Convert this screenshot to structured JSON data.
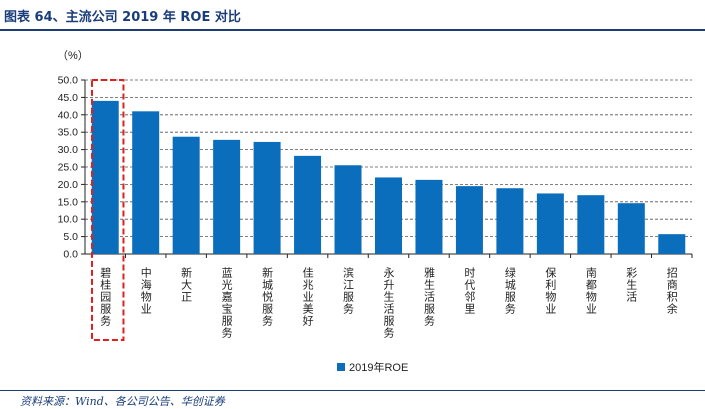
{
  "header": {
    "title": "图表 64、主流公司 2019 年 ROE 对比"
  },
  "footer": {
    "source": "资料来源：Wind、各公司公告、华创证券"
  },
  "colors": {
    "bar": "#0a6ebd",
    "highlight": "#e02020",
    "title": "#1a3d7a"
  },
  "chart_data": {
    "type": "bar",
    "title": "",
    "ylabel": "（%）",
    "xlabel": "",
    "ylim": [
      0,
      50
    ],
    "yticks": [
      "0.0",
      "5.0",
      "10.0",
      "15.0",
      "20.0",
      "25.0",
      "30.0",
      "35.0",
      "40.0",
      "45.0",
      "50.0"
    ],
    "grid": true,
    "categories": [
      "碧桂园服务",
      "中海物业",
      "新大正",
      "蓝光嘉宝服务",
      "新城悦服务",
      "佳兆业美好",
      "滨江服务",
      "永升生活服务",
      "雅生活服务",
      "时代邻里",
      "绿城服务",
      "保利物业",
      "南都物业",
      "彩生活",
      "招商积余"
    ],
    "series": [
      {
        "name": "2019年ROE",
        "values": [
          44.0,
          41.0,
          33.7,
          32.8,
          32.2,
          28.2,
          25.5,
          22.0,
          21.3,
          19.5,
          18.9,
          17.4,
          16.9,
          14.6,
          5.7
        ]
      }
    ],
    "highlight_index": 0,
    "legend": {
      "position": "bottom-center",
      "label": "2019年ROE"
    }
  }
}
